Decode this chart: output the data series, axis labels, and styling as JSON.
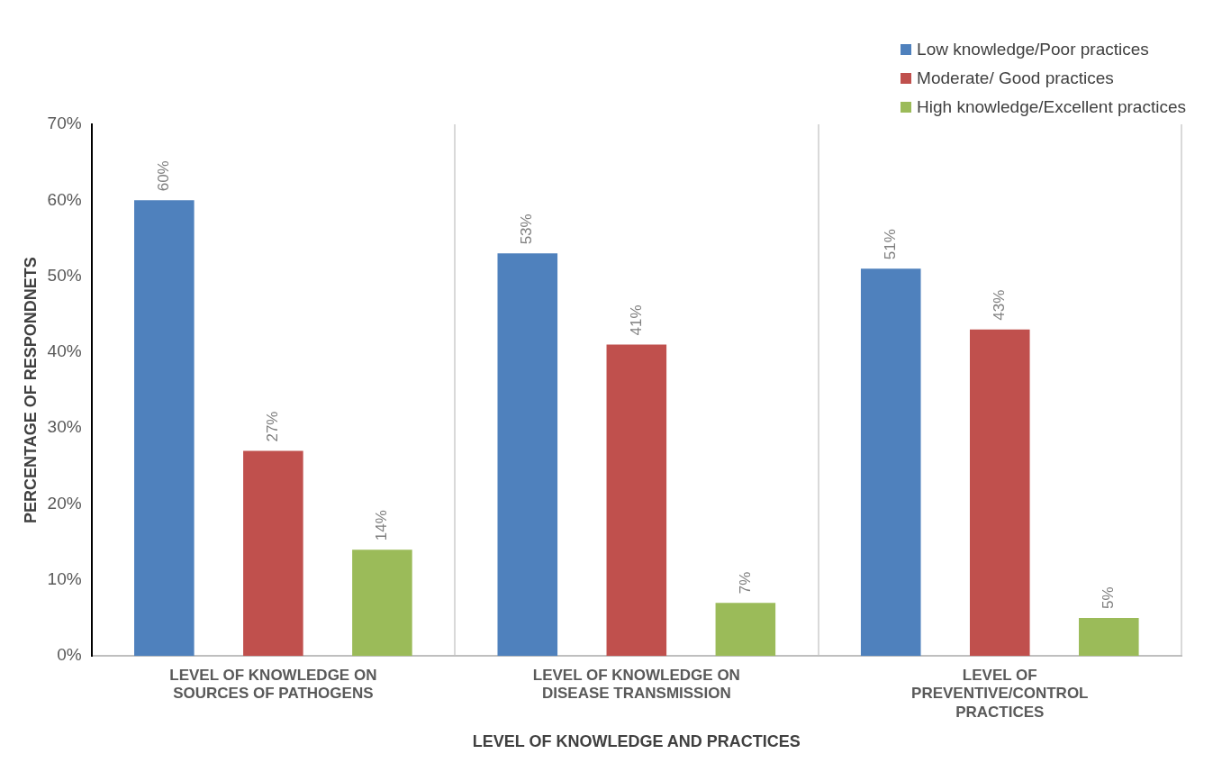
{
  "chart_data": {
    "type": "bar",
    "categories": [
      "LEVEL OF KNOWLEDGE ON SOURCES OF PATHOGENS",
      "LEVEL OF KNOWLEDGE ON DISEASE TRANSMISSION",
      "LEVEL OF PREVENTIVE/CONTROL PRACTICES"
    ],
    "series": [
      {
        "name": "Low knowledge/Poor practices",
        "color": "#4f81bd",
        "values": [
          60,
          53,
          51
        ]
      },
      {
        "name": "Moderate/ Good practices",
        "color": "#c0504d",
        "values": [
          27,
          41,
          43
        ]
      },
      {
        "name": "High knowledge/Excellent practices",
        "color": "#9bbb59",
        "values": [
          14,
          7,
          5
        ]
      }
    ],
    "xlabel": "LEVEL OF KNOWLEDGE AND PRACTICES",
    "ylabel": "PERCENTAGE OF RESPONDNETS",
    "ylim": [
      0,
      70
    ],
    "yticks": [
      {
        "value": 0,
        "label": "0%"
      },
      {
        "value": 10,
        "label": "10%"
      },
      {
        "value": 20,
        "label": "20%"
      },
      {
        "value": 30,
        "label": "30%"
      },
      {
        "value": 40,
        "label": "40%"
      },
      {
        "value": 50,
        "label": "50%"
      },
      {
        "value": 60,
        "label": "60%"
      },
      {
        "value": 70,
        "label": "70%"
      }
    ],
    "value_labels": [
      [
        "60%",
        "53%",
        "51%"
      ],
      [
        "27%",
        "41%",
        "43%"
      ],
      [
        "14%",
        "7%",
        "5%"
      ]
    ],
    "grid": "x",
    "legend": "top right"
  }
}
